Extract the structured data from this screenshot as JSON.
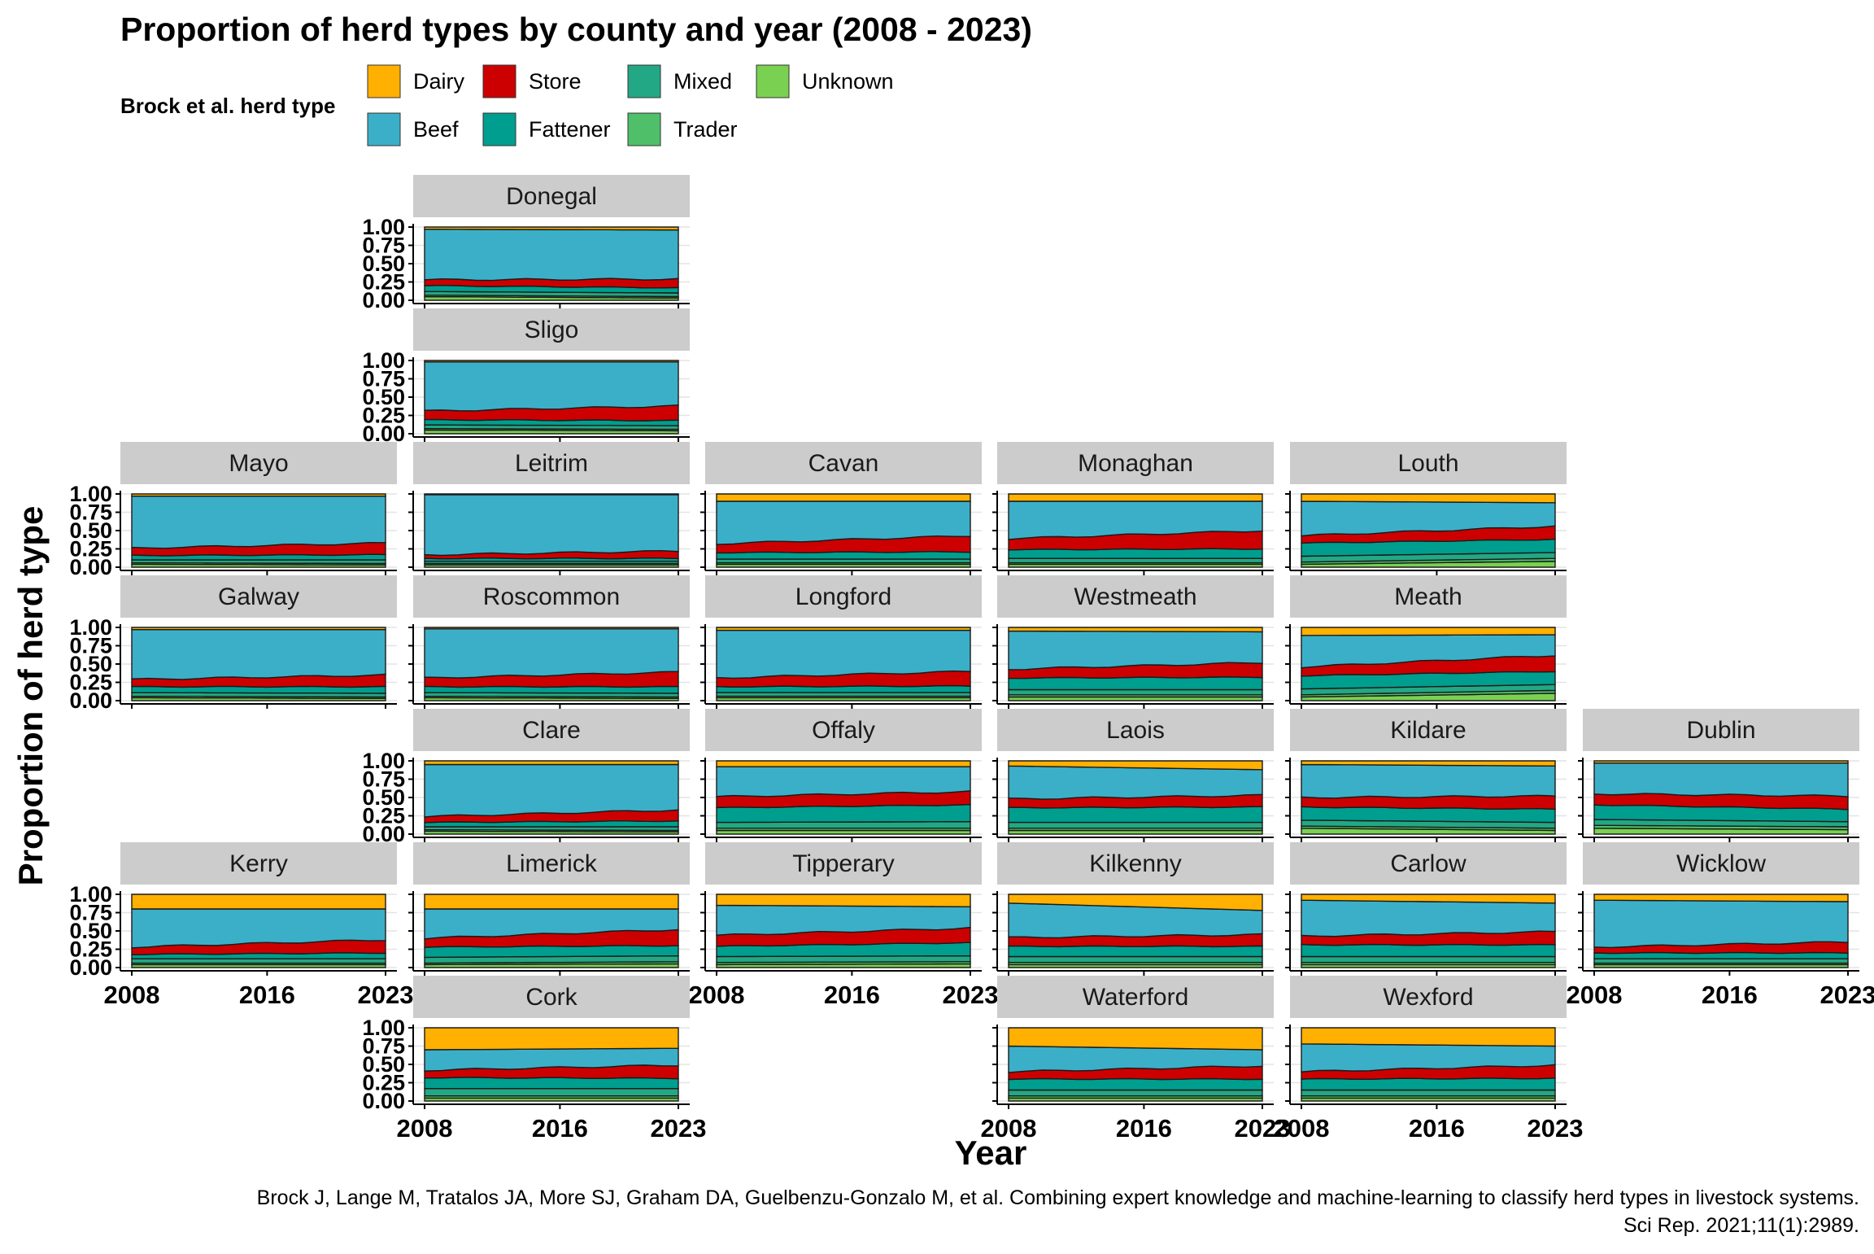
{
  "chart_data": {
    "type": "area",
    "title": "Proportion of herd types by county and year (2008 - 2023)",
    "xlabel": "Year",
    "ylabel": "Proportion of herd type",
    "x_ticks": [
      "2008",
      "2016",
      "2023"
    ],
    "y_ticks": [
      "0.00",
      "0.25",
      "0.50",
      "0.75",
      "1.00"
    ],
    "xlim": [
      2008,
      2023
    ],
    "ylim": [
      0,
      1
    ],
    "legend": {
      "title": "Brock et al. herd type",
      "position": "top",
      "items": [
        {
          "name": "Dairy",
          "color": "#FFB000"
        },
        {
          "name": "Store",
          "color": "#CC0000"
        },
        {
          "name": "Mixed",
          "color": "#22A884"
        },
        {
          "name": "Unknown",
          "color": "#7AD151"
        },
        {
          "name": "Beef",
          "color": "#3CAFC8"
        },
        {
          "name": "Fattener",
          "color": "#009E8E"
        },
        {
          "name": "Trader",
          "color": "#4FBF6A"
        }
      ]
    },
    "stack_order_bottom_to_top": [
      "Unknown",
      "Trader",
      "Mixed",
      "Fattener",
      "Store",
      "Beef",
      "Dairy"
    ],
    "caption_lines": [
      "Brock J, Lange M, Tratalos JA, More SJ, Graham DA, Guelbenzu-Gonzalo M, et al. Combining expert knowledge and machine-learning to classify herd types in livestock systems.",
      "Sci Rep. 2021;11(1):2989."
    ],
    "counties": [
      {
        "name": "Donegal",
        "dairy": [
          0.03,
          0.04
        ],
        "store": [
          0.08,
          0.12
        ],
        "fattener": [
          0.08,
          0.07
        ],
        "mixed": [
          0.05,
          0.05
        ],
        "trader": [
          0.02,
          0.02
        ],
        "unknown": [
          0.05,
          0.03
        ]
      },
      {
        "name": "Sligo",
        "dairy": [
          0.02,
          0.02
        ],
        "store": [
          0.12,
          0.2
        ],
        "fattener": [
          0.07,
          0.07
        ],
        "mixed": [
          0.05,
          0.05
        ],
        "trader": [
          0.02,
          0.02
        ],
        "unknown": [
          0.05,
          0.04
        ]
      },
      {
        "name": "Mayo",
        "dairy": [
          0.03,
          0.03
        ],
        "store": [
          0.1,
          0.16
        ],
        "fattener": [
          0.06,
          0.07
        ],
        "mixed": [
          0.04,
          0.05
        ],
        "trader": [
          0.02,
          0.02
        ],
        "unknown": [
          0.04,
          0.03
        ]
      },
      {
        "name": "Leitrim",
        "dairy": [
          0.01,
          0.01
        ],
        "store": [
          0.05,
          0.1
        ],
        "fattener": [
          0.04,
          0.04
        ],
        "mixed": [
          0.03,
          0.03
        ],
        "trader": [
          0.02,
          0.02
        ],
        "unknown": [
          0.03,
          0.03
        ]
      },
      {
        "name": "Cavan",
        "dairy": [
          0.1,
          0.1
        ],
        "store": [
          0.12,
          0.22
        ],
        "fattener": [
          0.09,
          0.1
        ],
        "mixed": [
          0.05,
          0.05
        ],
        "trader": [
          0.02,
          0.02
        ],
        "unknown": [
          0.04,
          0.04
        ]
      },
      {
        "name": "Monaghan",
        "dairy": [
          0.1,
          0.1
        ],
        "store": [
          0.15,
          0.25
        ],
        "fattener": [
          0.12,
          0.13
        ],
        "mixed": [
          0.06,
          0.06
        ],
        "trader": [
          0.02,
          0.02
        ],
        "unknown": [
          0.04,
          0.04
        ]
      },
      {
        "name": "Louth",
        "dairy": [
          0.1,
          0.12
        ],
        "store": [
          0.1,
          0.18
        ],
        "fattener": [
          0.18,
          0.18
        ],
        "mixed": [
          0.08,
          0.08
        ],
        "trader": [
          0.03,
          0.04
        ],
        "unknown": [
          0.04,
          0.08
        ]
      },
      {
        "name": "Galway",
        "dairy": [
          0.03,
          0.03
        ],
        "store": [
          0.1,
          0.16
        ],
        "fattener": [
          0.08,
          0.09
        ],
        "mixed": [
          0.05,
          0.05
        ],
        "trader": [
          0.02,
          0.02
        ],
        "unknown": [
          0.04,
          0.03
        ]
      },
      {
        "name": "Roscommon",
        "dairy": [
          0.02,
          0.02
        ],
        "store": [
          0.12,
          0.2
        ],
        "fattener": [
          0.08,
          0.09
        ],
        "mixed": [
          0.05,
          0.05
        ],
        "trader": [
          0.02,
          0.02
        ],
        "unknown": [
          0.04,
          0.03
        ]
      },
      {
        "name": "Longford",
        "dairy": [
          0.04,
          0.04
        ],
        "store": [
          0.12,
          0.2
        ],
        "fattener": [
          0.08,
          0.09
        ],
        "mixed": [
          0.05,
          0.05
        ],
        "trader": [
          0.02,
          0.02
        ],
        "unknown": [
          0.04,
          0.04
        ]
      },
      {
        "name": "Westmeath",
        "dairy": [
          0.05,
          0.06
        ],
        "store": [
          0.12,
          0.2
        ],
        "fattener": [
          0.16,
          0.17
        ],
        "mixed": [
          0.07,
          0.07
        ],
        "trader": [
          0.03,
          0.03
        ],
        "unknown": [
          0.05,
          0.05
        ]
      },
      {
        "name": "Meath",
        "dairy": [
          0.11,
          0.1
        ],
        "store": [
          0.12,
          0.22
        ],
        "fattener": [
          0.18,
          0.18
        ],
        "mixed": [
          0.08,
          0.08
        ],
        "trader": [
          0.03,
          0.04
        ],
        "unknown": [
          0.05,
          0.1
        ]
      },
      {
        "name": "Clare",
        "dairy": [
          0.05,
          0.05
        ],
        "store": [
          0.08,
          0.15
        ],
        "fattener": [
          0.06,
          0.08
        ],
        "mixed": [
          0.04,
          0.05
        ],
        "trader": [
          0.02,
          0.02
        ],
        "unknown": [
          0.04,
          0.03
        ]
      },
      {
        "name": "Offaly",
        "dairy": [
          0.08,
          0.08
        ],
        "store": [
          0.15,
          0.18
        ],
        "fattener": [
          0.2,
          0.23
        ],
        "mixed": [
          0.08,
          0.09
        ],
        "trader": [
          0.03,
          0.03
        ],
        "unknown": [
          0.05,
          0.05
        ]
      },
      {
        "name": "Laois",
        "dairy": [
          0.07,
          0.12
        ],
        "store": [
          0.12,
          0.16
        ],
        "fattener": [
          0.2,
          0.21
        ],
        "mixed": [
          0.08,
          0.08
        ],
        "trader": [
          0.03,
          0.03
        ],
        "unknown": [
          0.05,
          0.05
        ]
      },
      {
        "name": "Kildare",
        "dairy": [
          0.05,
          0.07
        ],
        "store": [
          0.13,
          0.18
        ],
        "fattener": [
          0.18,
          0.18
        ],
        "mixed": [
          0.08,
          0.08
        ],
        "trader": [
          0.03,
          0.03
        ],
        "unknown": [
          0.08,
          0.05
        ]
      },
      {
        "name": "Dublin",
        "dairy": [
          0.03,
          0.03
        ],
        "store": [
          0.15,
          0.18
        ],
        "fattener": [
          0.2,
          0.17
        ],
        "mixed": [
          0.08,
          0.07
        ],
        "trader": [
          0.04,
          0.04
        ],
        "unknown": [
          0.08,
          0.06
        ]
      },
      {
        "name": "Kerry",
        "dairy": [
          0.2,
          0.2
        ],
        "store": [
          0.1,
          0.18
        ],
        "fattener": [
          0.06,
          0.08
        ],
        "mixed": [
          0.06,
          0.06
        ],
        "trader": [
          0.02,
          0.02
        ],
        "unknown": [
          0.04,
          0.04
        ]
      },
      {
        "name": "Limerick",
        "dairy": [
          0.2,
          0.2
        ],
        "store": [
          0.12,
          0.22
        ],
        "fattener": [
          0.14,
          0.14
        ],
        "mixed": [
          0.08,
          0.08
        ],
        "trader": [
          0.02,
          0.03
        ],
        "unknown": [
          0.04,
          0.05
        ]
      },
      {
        "name": "Tipperary",
        "dairy": [
          0.15,
          0.17
        ],
        "store": [
          0.15,
          0.2
        ],
        "fattener": [
          0.14,
          0.18
        ],
        "mixed": [
          0.08,
          0.08
        ],
        "trader": [
          0.03,
          0.03
        ],
        "unknown": [
          0.04,
          0.05
        ]
      },
      {
        "name": "Kilkenny",
        "dairy": [
          0.12,
          0.22
        ],
        "store": [
          0.12,
          0.16
        ],
        "fattener": [
          0.14,
          0.14
        ],
        "mixed": [
          0.08,
          0.08
        ],
        "trader": [
          0.03,
          0.03
        ],
        "unknown": [
          0.04,
          0.04
        ]
      },
      {
        "name": "Carlow",
        "dairy": [
          0.08,
          0.12
        ],
        "store": [
          0.12,
          0.18
        ],
        "fattener": [
          0.16,
          0.16
        ],
        "mixed": [
          0.08,
          0.08
        ],
        "trader": [
          0.03,
          0.03
        ],
        "unknown": [
          0.04,
          0.04
        ]
      },
      {
        "name": "Wicklow",
        "dairy": [
          0.08,
          0.1
        ],
        "store": [
          0.08,
          0.15
        ],
        "fattener": [
          0.08,
          0.08
        ],
        "mixed": [
          0.06,
          0.06
        ],
        "trader": [
          0.02,
          0.02
        ],
        "unknown": [
          0.04,
          0.04
        ]
      },
      {
        "name": "Cork",
        "dairy": [
          0.3,
          0.28
        ],
        "store": [
          0.1,
          0.18
        ],
        "fattener": [
          0.15,
          0.14
        ],
        "mixed": [
          0.1,
          0.1
        ],
        "trader": [
          0.03,
          0.03
        ],
        "unknown": [
          0.04,
          0.04
        ]
      },
      {
        "name": "Waterford",
        "dairy": [
          0.25,
          0.3
        ],
        "store": [
          0.1,
          0.18
        ],
        "fattener": [
          0.15,
          0.15
        ],
        "mixed": [
          0.08,
          0.08
        ],
        "trader": [
          0.03,
          0.03
        ],
        "unknown": [
          0.04,
          0.04
        ]
      },
      {
        "name": "Wexford",
        "dairy": [
          0.22,
          0.25
        ],
        "store": [
          0.1,
          0.18
        ],
        "fattener": [
          0.15,
          0.16
        ],
        "mixed": [
          0.08,
          0.08
        ],
        "trader": [
          0.03,
          0.03
        ],
        "unknown": [
          0.04,
          0.04
        ]
      }
    ]
  }
}
